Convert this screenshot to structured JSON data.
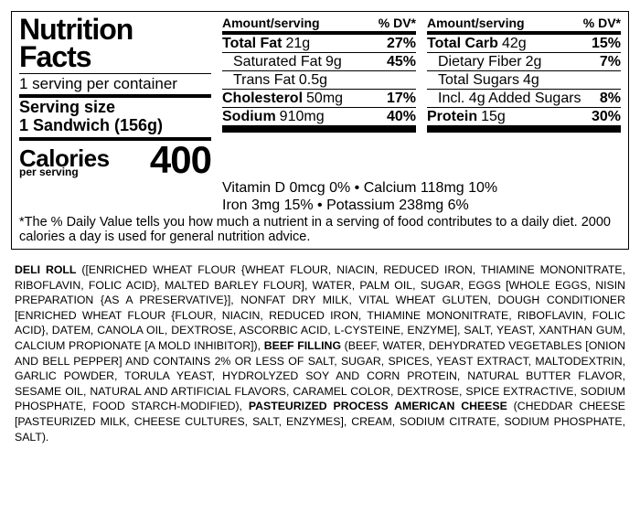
{
  "title": "Nutrition Facts",
  "servings_per": "1 serving per container",
  "serving_size_label": "Serving size",
  "serving_size_value": "1 Sandwich (156g)",
  "calories_label": "Calories",
  "calories_sub": "per serving",
  "calories_value": "400",
  "header_amount": "Amount/serving",
  "header_dv": "% DV*",
  "col_mid": [
    {
      "name": "Total Fat",
      "amount": "21g",
      "dv": "27%",
      "bold": true,
      "indent": false
    },
    {
      "name": "Saturated Fat",
      "amount": "9g",
      "dv": "45%",
      "bold": false,
      "indent": true
    },
    {
      "name": "Trans Fat",
      "amount": "0.5g",
      "dv": "",
      "bold": false,
      "indent": true
    },
    {
      "name": "Cholesterol",
      "amount": "50mg",
      "dv": "17%",
      "bold": true,
      "indent": false
    },
    {
      "name": "Sodium",
      "amount": "910mg",
      "dv": "40%",
      "bold": true,
      "indent": false
    }
  ],
  "col_right": [
    {
      "name": "Total Carb",
      "amount": "42g",
      "dv": "15%",
      "bold": true,
      "indent": false
    },
    {
      "name": "Dietary Fiber",
      "amount": "2g",
      "dv": "7%",
      "bold": false,
      "indent": true
    },
    {
      "name": "Total Sugars",
      "amount": "4g",
      "dv": "",
      "bold": false,
      "indent": true
    },
    {
      "name": "Incl. 4g Added Sugars",
      "amount": "",
      "dv": "8%",
      "bold": false,
      "indent": true
    },
    {
      "name": "Protein",
      "amount": "15g",
      "dv": "30%",
      "bold": true,
      "indent": false
    }
  ],
  "vitamins_line1": "Vitamin D 0mcg 0% • Calcium 118mg 10%",
  "vitamins_line2": "Iron 3mg 15% • Potassium 238mg 6%",
  "footnote": "*The % Daily Value tells you how much a nutrient in a serving of food contributes to a daily diet. 2000 calories a day is used for general nutrition advice.",
  "ing": {
    "p1a": "DELI ROLL",
    "p1b": " ([ENRICHED WHEAT FLOUR {WHEAT FLOUR, NIACIN, REDUCED IRON, THIAMINE MONONITRATE, RIBOFLAVIN, FOLIC ACID}, MALTED BARLEY FLOUR], WATER, PALM OIL, SUGAR, EGGS [WHOLE EGGS, NISIN PREPARATION {AS A PRESERVATIVE}], NONFAT DRY MILK, VITAL WHEAT GLUTEN, DOUGH CONDITIONER [ENRICHED WHEAT FLOUR {FLOUR, NIACIN, REDUCED IRON, THIAMINE MONONITRATE, RIBOFLAVIN, FOLIC ACID}, DATEM, CANOLA OIL, DEXTROSE, ASCORBIC ACID, L-CYSTEINE, ENZYME], SALT, YEAST, XANTHAN GUM, CALCIUM PROPIONATE [A MOLD INHIBITOR]), ",
    "p2a": "BEEF FILLING",
    "p2b": " (BEEF, WATER, DEHYDRATED VEGETABLES [ONION AND BELL PEPPER] AND CONTAINS 2% OR LESS OF SALT, SUGAR, SPICES, YEAST EXTRACT, MALTODEXTRIN, GARLIC POWDER, TORULA YEAST, HYDROLYZED SOY AND CORN PROTEIN, NATURAL BUTTER FLAVOR, SESAME OIL, NATURAL AND ARTIFICIAL FLAVORS, CARAMEL COLOR, DEXTROSE, SPICE EXTRACTIVE, SODIUM PHOSPHATE, FOOD STARCH-MODIFIED), ",
    "p3a": "PASTEURIZED PROCESS AMERICAN CHEESE",
    "p3b": " (CHEDDAR CHEESE [PASTEURIZED MILK, CHEESE CULTURES, SALT, ENZYMES], CREAM, SODIUM CITRATE, SODIUM PHOSPHATE,  SALT)."
  }
}
